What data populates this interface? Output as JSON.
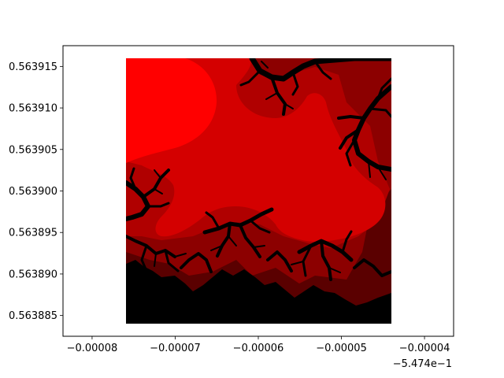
{
  "chart_data": {
    "type": "heatmap",
    "title": "",
    "xlabel": "",
    "ylabel": "",
    "x_offset_label": "−5.474e−1",
    "xlim": [
      -8.35e-05,
      -3.65e-05
    ],
    "ylim": [
      0.5638825,
      0.5639175
    ],
    "x_ticks": [
      -8e-05,
      -7e-05,
      -6e-05,
      -5e-05,
      -4e-05
    ],
    "x_tick_labels": [
      "−0.00008",
      "−0.00007",
      "−0.00006",
      "−0.00005",
      "−0.00004"
    ],
    "y_ticks": [
      0.563885,
      0.56389,
      0.563895,
      0.5639,
      0.563905,
      0.56391,
      0.563915
    ],
    "y_tick_labels": [
      "0.563885",
      "0.563890",
      "0.563895",
      "0.563900",
      "0.563905",
      "0.563910",
      "0.563915"
    ],
    "data_extent": {
      "x": [
        -7.6e-05,
        -4.4e-05
      ],
      "y": [
        0.563884,
        0.563916
      ]
    },
    "grid": false,
    "legend": "none",
    "colors": {
      "outer": "#ff0000",
      "band_1": "#d40000",
      "band_2": "#b00000",
      "band_3": "#8c0000",
      "band_4": "#5a0000",
      "inside_set": "#000000"
    }
  }
}
